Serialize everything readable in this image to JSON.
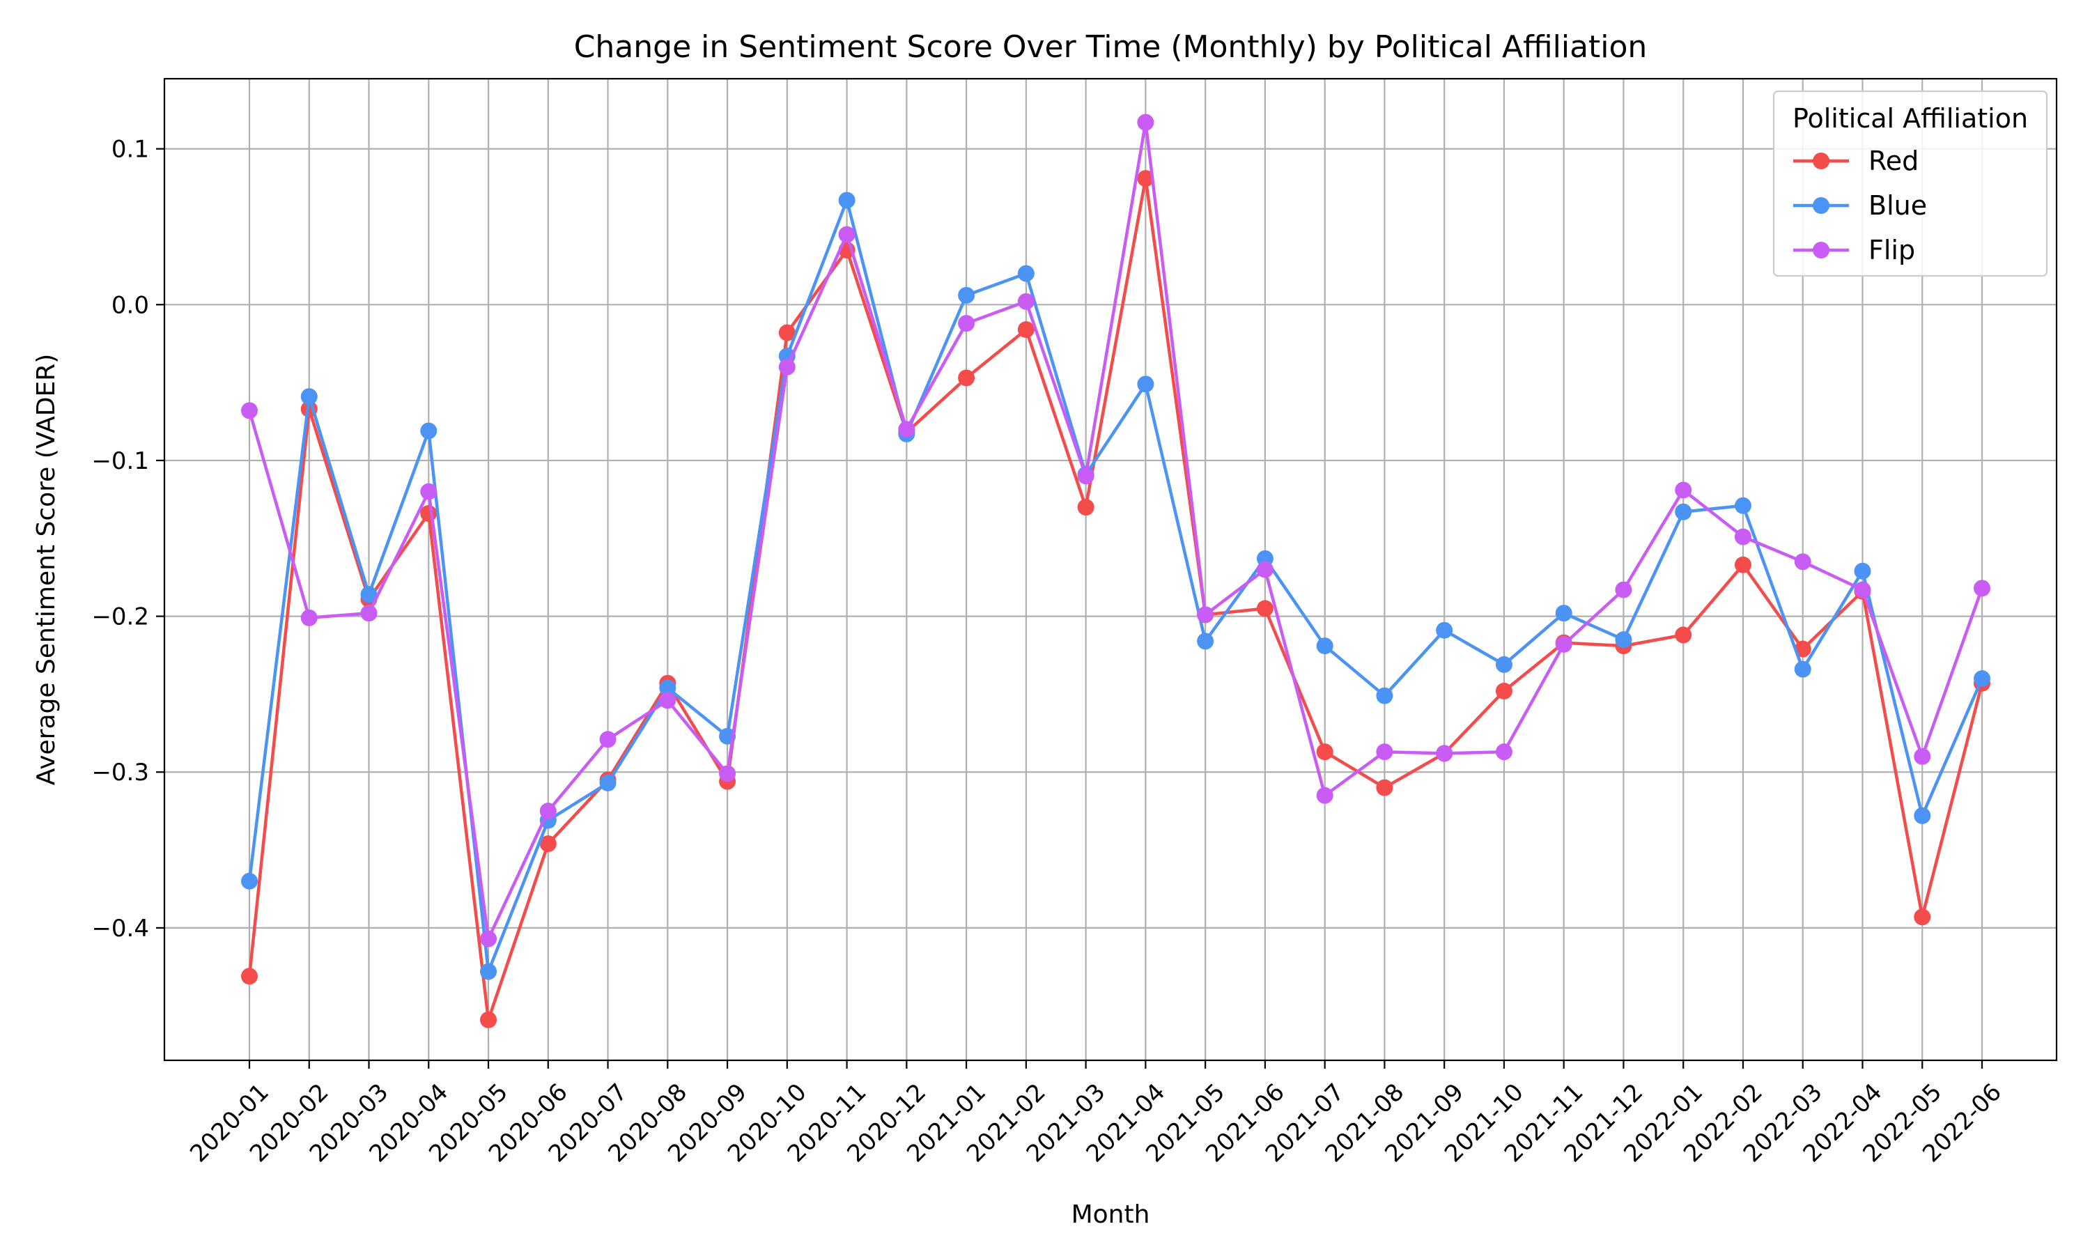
{
  "chart_data": {
    "type": "line",
    "title": "Change in Sentiment Score Over Time (Monthly) by Political Affiliation",
    "xlabel": "Month",
    "ylabel": "Average Sentiment Score (VADER)",
    "ylim": [
      -0.485,
      0.145
    ],
    "yticks": [
      -0.4,
      -0.3,
      -0.2,
      -0.1,
      0.0,
      0.1
    ],
    "ytick_labels": [
      "−0.4",
      "−0.3",
      "−0.2",
      "−0.1",
      "0.0",
      "0.1"
    ],
    "grid": true,
    "legend": {
      "title": "Political Affiliation",
      "placement": "top-right"
    },
    "categories": [
      "2020-01",
      "2020-02",
      "2020-03",
      "2020-04",
      "2020-05",
      "2020-06",
      "2020-07",
      "2020-08",
      "2020-09",
      "2020-10",
      "2020-11",
      "2020-12",
      "2021-01",
      "2021-02",
      "2021-03",
      "2021-04",
      "2021-05",
      "2021-06",
      "2021-07",
      "2021-08",
      "2021-09",
      "2021-10",
      "2021-11",
      "2021-12",
      "2022-01",
      "2022-02",
      "2022-03",
      "2022-04",
      "2022-05",
      "2022-06"
    ],
    "series": [
      {
        "name": "Red",
        "color": "#f44b4b",
        "values": [
          -0.431,
          -0.067,
          -0.189,
          -0.134,
          -0.459,
          -0.346,
          -0.305,
          -0.243,
          -0.306,
          -0.018,
          0.035,
          -0.082,
          -0.047,
          -0.016,
          -0.13,
          0.081,
          -0.199,
          -0.195,
          -0.287,
          -0.31,
          -0.288,
          -0.248,
          -0.217,
          -0.219,
          -0.212,
          -0.167,
          -0.221,
          -0.184,
          -0.393,
          -0.243
        ]
      },
      {
        "name": "Blue",
        "color": "#4b93f4",
        "values": [
          -0.37,
          -0.059,
          -0.186,
          -0.081,
          -0.428,
          -0.331,
          -0.307,
          -0.246,
          -0.277,
          -0.033,
          0.067,
          -0.083,
          0.006,
          0.02,
          -0.109,
          -0.051,
          -0.216,
          -0.163,
          -0.219,
          -0.251,
          -0.209,
          -0.231,
          -0.198,
          -0.215,
          -0.133,
          -0.129,
          -0.234,
          -0.171,
          -0.328,
          -0.24
        ]
      },
      {
        "name": "Flip",
        "color": "#c85cf4",
        "values": [
          -0.068,
          -0.201,
          -0.198,
          -0.12,
          -0.407,
          -0.325,
          -0.279,
          -0.254,
          -0.301,
          -0.04,
          0.045,
          -0.08,
          -0.012,
          0.002,
          -0.11,
          0.117,
          -0.199,
          -0.17,
          -0.315,
          -0.287,
          -0.288,
          -0.287,
          -0.218,
          -0.183,
          -0.119,
          -0.149,
          -0.165,
          -0.183,
          -0.29,
          -0.182
        ]
      }
    ]
  }
}
